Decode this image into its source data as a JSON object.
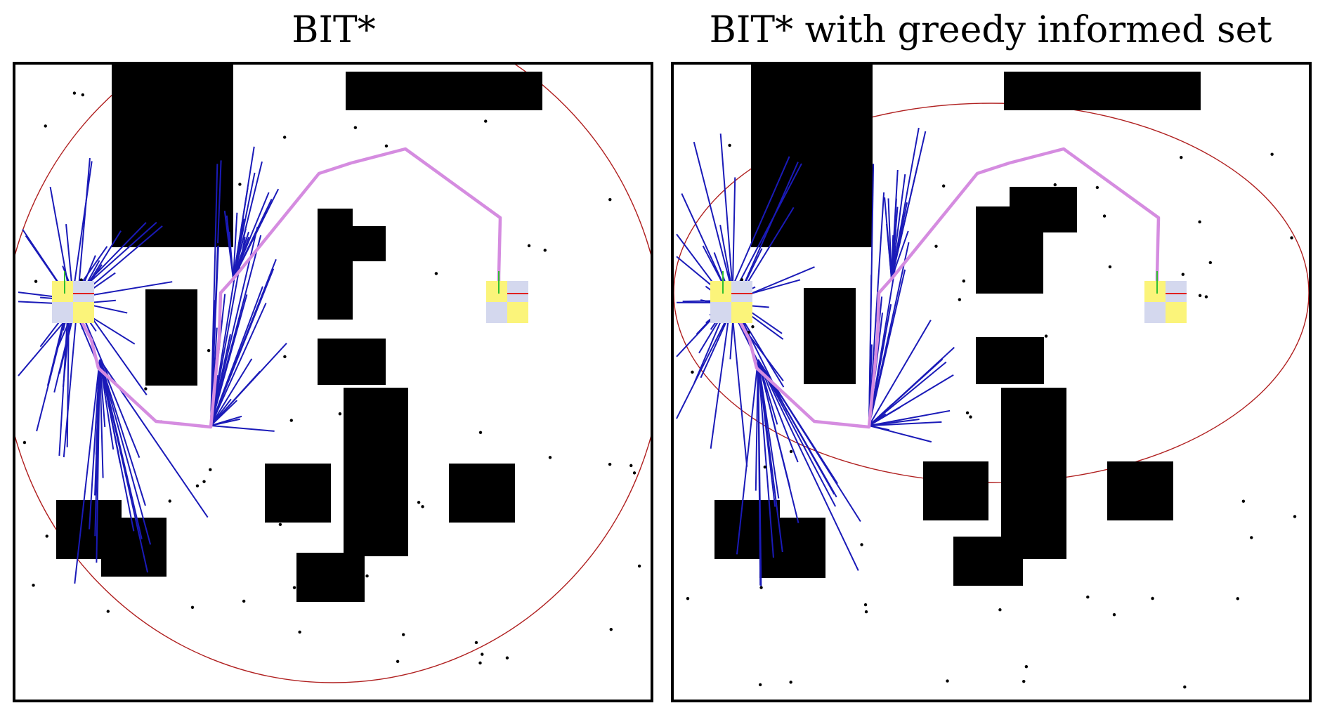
{
  "panels": [
    {
      "title": "BIT*",
      "ellipse_visible": "partial"
    },
    {
      "title": "BIT* with greedy informed set",
      "ellipse_visible": "full"
    }
  ],
  "colors": {
    "obstacle": "#000000",
    "tree_edge": "#1a1ab8",
    "solution_path": "#d58ce0",
    "informed_set": "#b02020",
    "start_goal_yellow": "#fbf47a",
    "start_goal_lavender": "#d4d8ee",
    "axis_x": "#e02020",
    "axis_y": "#30c030",
    "sample": "#000000"
  },
  "icons": [
    "start-marker-icon",
    "goal-marker-icon"
  ]
}
